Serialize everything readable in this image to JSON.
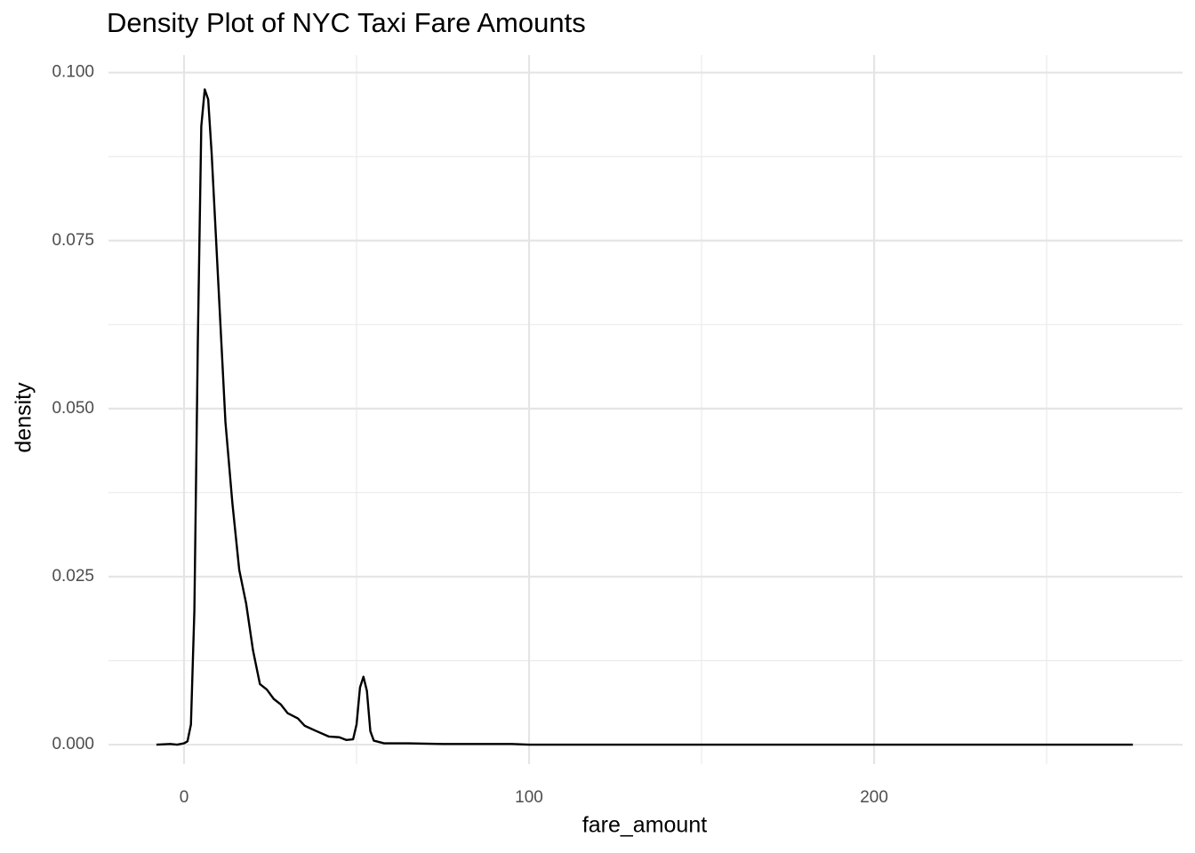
{
  "chart_data": {
    "type": "density",
    "title": "Density Plot of NYC Taxi Fare Amounts",
    "x_label": "fare_amount",
    "y_label": "density",
    "color": "#000000",
    "grid": true,
    "xlim": [
      -21.9,
      289.4
    ],
    "ylim": [
      -0.0029,
      0.1026
    ],
    "xticks": [
      0,
      100,
      200
    ],
    "yticks": [
      {
        "value": 0,
        "label": "0.000"
      },
      {
        "value": 0.025,
        "label": "0.025"
      },
      {
        "value": 0.05,
        "label": "0.050"
      },
      {
        "value": 0.075,
        "label": "0.075"
      },
      {
        "value": 0.1,
        "label": "0.100"
      }
    ],
    "x": [
      -8,
      -4,
      -2,
      0,
      1,
      2,
      3,
      4,
      5,
      6,
      7,
      8,
      9,
      10,
      11,
      12,
      14,
      15,
      16,
      18,
      20,
      22,
      24,
      26,
      28,
      30,
      33,
      35,
      38,
      42,
      45,
      47,
      49,
      50,
      51,
      52,
      53,
      54,
      55,
      58,
      65,
      75,
      95,
      100,
      150,
      200,
      250,
      275
    ],
    "values": [
      0,
      0.0001,
      0,
      0.0002,
      0.0005,
      0.003,
      0.02,
      0.06,
      0.092,
      0.0975,
      0.096,
      0.088,
      0.078,
      0.068,
      0.058,
      0.048,
      0.036,
      0.031,
      0.026,
      0.021,
      0.014,
      0.009,
      0.0082,
      0.0068,
      0.006,
      0.0047,
      0.0039,
      0.0028,
      0.0021,
      0.0012,
      0.0011,
      0.0007,
      0.0008,
      0.003,
      0.0085,
      0.0101,
      0.008,
      0.002,
      0.0006,
      0.0002,
      0.0002,
      0.0001,
      0.0001,
      0,
      0,
      0,
      0,
      0
    ]
  }
}
